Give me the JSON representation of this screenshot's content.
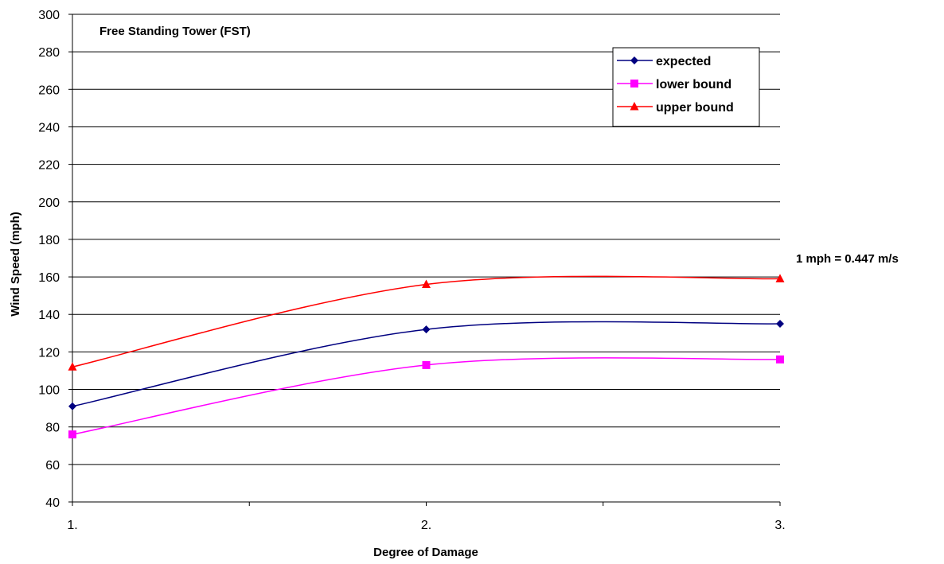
{
  "chart_data": {
    "type": "line",
    "title": "Free Standing Tower (FST)",
    "xlabel": "Degree of Damage",
    "ylabel": "Wind Speed (mph)",
    "note": "1 mph = 0.447 m/s",
    "categories": [
      "1.",
      "2.",
      "3."
    ],
    "x": [
      1,
      2,
      3
    ],
    "xlim": [
      1,
      3
    ],
    "ylim": [
      40,
      300
    ],
    "ytick_step": 20,
    "yticks": [
      "40",
      "60",
      "80",
      "100",
      "120",
      "140",
      "160",
      "180",
      "200",
      "220",
      "240",
      "260",
      "280",
      "300"
    ],
    "grid": "horizontal",
    "smooth": true,
    "legend_position": "top-right",
    "series": [
      {
        "name": "expected",
        "values": [
          91,
          132,
          135
        ],
        "color": "#000080",
        "marker": "diamond"
      },
      {
        "name": "lower bound",
        "values": [
          76,
          113,
          116
        ],
        "color": "#FF00FF",
        "marker": "square"
      },
      {
        "name": "upper bound",
        "values": [
          112,
          156,
          159
        ],
        "color": "#FF0000",
        "marker": "triangle"
      }
    ]
  }
}
